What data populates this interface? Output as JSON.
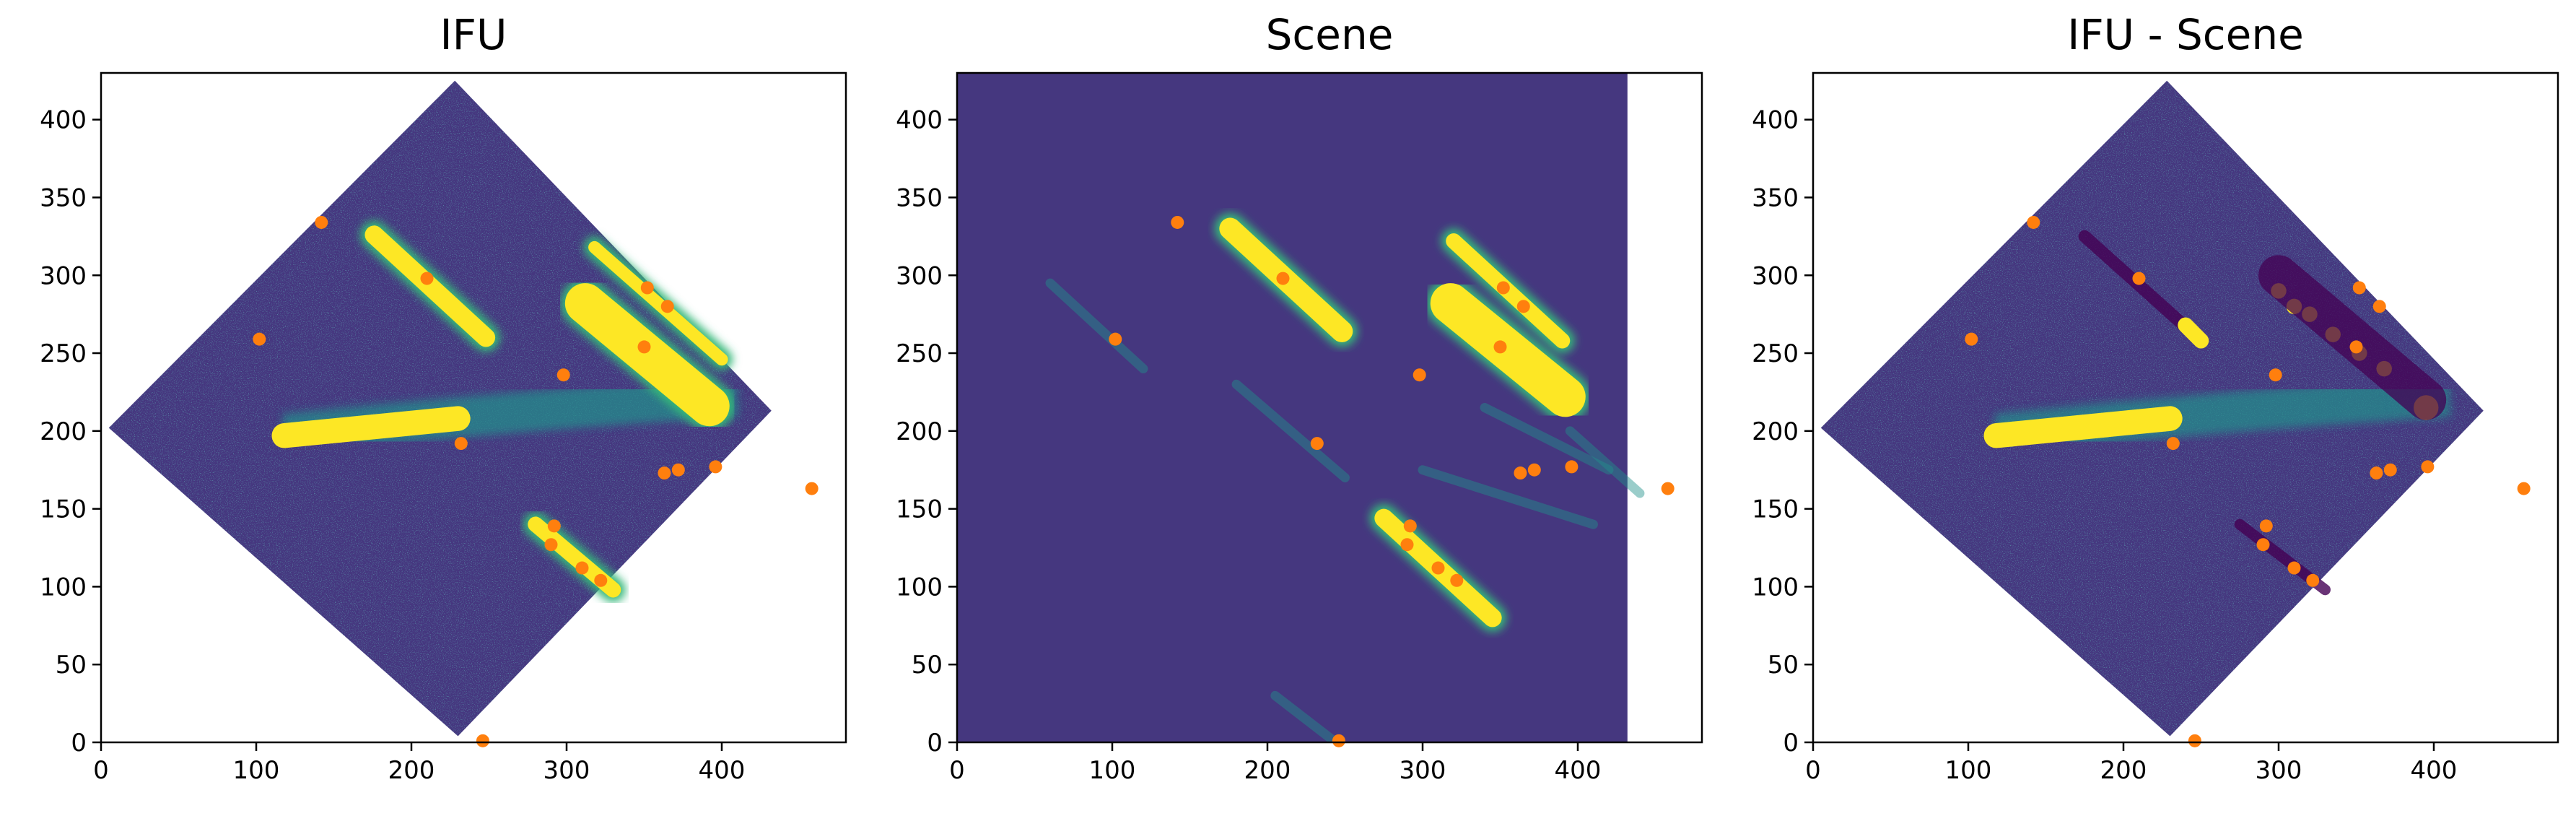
{
  "colors": {
    "viridis_dark": "#440154",
    "viridis_bg": "#45377f",
    "teal": "#21918c",
    "green": "#35b779",
    "yellow": "#fde725",
    "marker": "#ff7f0e",
    "axis": "#000000"
  },
  "chart_data": [
    {
      "type": "image+scatter",
      "title": "IFU",
      "xlim": [
        0,
        480
      ],
      "ylim": [
        0,
        430
      ],
      "xticks": [
        0,
        100,
        200,
        300,
        400
      ],
      "yticks": [
        0,
        50,
        100,
        150,
        200,
        250,
        300,
        350,
        400
      ],
      "image": "noisy rotated-square IFU field with bright streaks",
      "markers": [
        [
          142,
          334
        ],
        [
          210,
          298
        ],
        [
          102,
          259
        ],
        [
          350,
          254
        ],
        [
          298,
          236
        ],
        [
          352,
          292
        ],
        [
          365,
          280
        ],
        [
          232,
          192
        ],
        [
          363,
          173
        ],
        [
          372,
          175
        ],
        [
          396,
          177
        ],
        [
          458,
          163
        ],
        [
          292,
          139
        ],
        [
          290,
          127
        ],
        [
          310,
          112
        ],
        [
          322,
          104
        ],
        [
          246,
          1
        ]
      ]
    },
    {
      "type": "image+scatter",
      "title": "Scene",
      "xlim": [
        0,
        480
      ],
      "ylim": [
        0,
        430
      ],
      "xticks": [
        0,
        100,
        200,
        300,
        400
      ],
      "yticks": [
        0,
        50,
        100,
        150,
        200,
        250,
        300,
        350,
        400
      ],
      "image": "uniform background with modelled bright streaks",
      "markers": [
        [
          142,
          334
        ],
        [
          210,
          298
        ],
        [
          102,
          259
        ],
        [
          350,
          254
        ],
        [
          298,
          236
        ],
        [
          352,
          292
        ],
        [
          365,
          280
        ],
        [
          232,
          192
        ],
        [
          363,
          173
        ],
        [
          372,
          175
        ],
        [
          396,
          177
        ],
        [
          458,
          163
        ],
        [
          292,
          139
        ],
        [
          290,
          127
        ],
        [
          310,
          112
        ],
        [
          322,
          104
        ],
        [
          246,
          1
        ]
      ]
    },
    {
      "type": "image+scatter",
      "title": "IFU - Scene",
      "xlim": [
        0,
        480
      ],
      "ylim": [
        0,
        430
      ],
      "xticks": [
        0,
        100,
        200,
        300,
        400
      ],
      "yticks": [
        0,
        50,
        100,
        150,
        200,
        250,
        300,
        350,
        400
      ],
      "image": "residual: noisy rotated-square field with bright galaxy and residual streaks",
      "markers": [
        [
          142,
          334
        ],
        [
          210,
          298
        ],
        [
          102,
          259
        ],
        [
          350,
          254
        ],
        [
          298,
          236
        ],
        [
          352,
          292
        ],
        [
          365,
          280
        ],
        [
          232,
          192
        ],
        [
          363,
          173
        ],
        [
          372,
          175
        ],
        [
          396,
          177
        ],
        [
          458,
          163
        ],
        [
          292,
          139
        ],
        [
          290,
          127
        ],
        [
          310,
          112
        ],
        [
          322,
          104
        ],
        [
          246,
          1
        ]
      ]
    }
  ]
}
